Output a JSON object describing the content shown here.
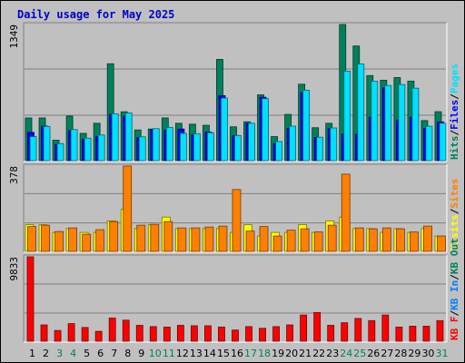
{
  "chart_data": {
    "type": "bar",
    "title": "Daily usage for May 2025",
    "categories": [
      "1",
      "2",
      "3",
      "4",
      "5",
      "6",
      "7",
      "8",
      "9",
      "10",
      "11",
      "12",
      "13",
      "14",
      "15",
      "16",
      "17",
      "18",
      "19",
      "20",
      "21",
      "22",
      "23",
      "24",
      "25",
      "26",
      "27",
      "28",
      "29",
      "30",
      "31"
    ],
    "weekend_days": [
      "3",
      "4",
      "10",
      "11",
      "17",
      "18",
      "24",
      "25",
      "31"
    ],
    "colors": {
      "hits": "#00805c",
      "files": "#0000ff",
      "pages": "#00e0ff",
      "visits": "#ffff00",
      "sites": "#ff8000",
      "kb": "#ff0000",
      "weekend_label": "#00805c",
      "weekday_label": "#000000"
    },
    "panels": [
      {
        "ymax": 1349,
        "ylabel": "1349",
        "legend": [
          {
            "text": "Hits",
            "color": "#00805c"
          },
          {
            "text": "/",
            "color": "#000000"
          },
          {
            "text": "Files",
            "color": "#0000ff"
          },
          {
            "text": "/",
            "color": "#000000"
          },
          {
            "text": "Pages",
            "color": "#00e0ff"
          }
        ],
        "series": [
          {
            "name": "Hits",
            "color": "#00805c",
            "values": [
              423,
              423,
              203,
              441,
              270,
              370,
              960,
              484,
              304,
              313,
              423,
              370,
              361,
              350,
              1003,
              335,
              385,
              652,
              238,
              458,
              757,
              326,
              370,
              1349,
              1136,
              843,
              797,
              823,
              788,
              397,
              485
            ]
          },
          {
            "name": "Files",
            "color": "#0000ff",
            "values": [
              280,
              342,
              160,
              300,
              212,
              238,
              458,
              440,
              227,
              310,
              300,
              313,
              254,
              283,
              644,
              249,
              370,
              628,
              168,
              320,
              675,
              230,
              317,
              263,
              260,
              430,
              720,
              400,
              430,
              320,
              384
            ]
          },
          {
            "name": "Pages",
            "color": "#00e0ff",
            "values": [
              238,
              339,
              169,
              308,
              223,
              254,
              465,
              472,
              236,
              317,
              330,
              270,
              267,
              276,
              620,
              249,
              370,
              615,
              189,
              342,
              697,
              232,
              324,
              887,
              958,
              788,
              745,
              754,
              718,
              341,
              371
            ]
          }
        ]
      },
      {
        "ymax": 378,
        "ylabel": "378",
        "legend": [
          {
            "text": "Visits",
            "color": "#ffff00"
          },
          {
            "text": "/",
            "color": "#000000"
          },
          {
            "text": "Sites",
            "color": "#ff8000"
          }
        ],
        "series": [
          {
            "name": "Visits",
            "color": "#ffff00",
            "values": [
              118,
              118,
              84,
              101,
              84,
              84,
              135,
              186,
              101,
              118,
              152,
              101,
              101,
              101,
              101,
              84,
              118,
              68,
              84,
              84,
              118,
              84,
              135,
              152,
              101,
              101,
              84,
              101,
              84,
              101,
              68
            ]
          },
          {
            "name": "Sites",
            "color": "#ff8000",
            "values": [
              110,
              116,
              88,
              104,
              76,
              96,
              132,
              378,
              116,
              120,
              132,
              104,
              104,
              108,
              112,
              274,
              90,
              110,
              68,
              94,
              100,
              86,
              116,
              342,
              104,
              100,
              104,
              100,
              86,
              112,
              68
            ]
          }
        ]
      },
      {
        "ymax": 9833,
        "ylabel": "9833",
        "legend": [
          {
            "text": "KB F",
            "color": "#ff0000"
          },
          {
            "text": "/",
            "color": "#000000"
          },
          {
            "text": "KB In",
            "color": "#0080ff"
          },
          {
            "text": "/",
            "color": "#000000"
          },
          {
            "text": "KB Out",
            "color": "#00805c"
          }
        ],
        "series": [
          {
            "name": "KB F",
            "color": "#ff0000",
            "values": [
              9833,
              1900,
              1250,
              2050,
              1600,
              1150,
              2700,
              2450,
              1850,
              1700,
              1650,
              1850,
              1800,
              1800,
              1650,
              1300,
              1700,
              1500,
              1700,
              1900,
              3050,
              3350,
              1850,
              2150,
              2650,
              2400,
              3050,
              1650,
              1750,
              1750,
              2400
            ]
          }
        ]
      }
    ]
  }
}
